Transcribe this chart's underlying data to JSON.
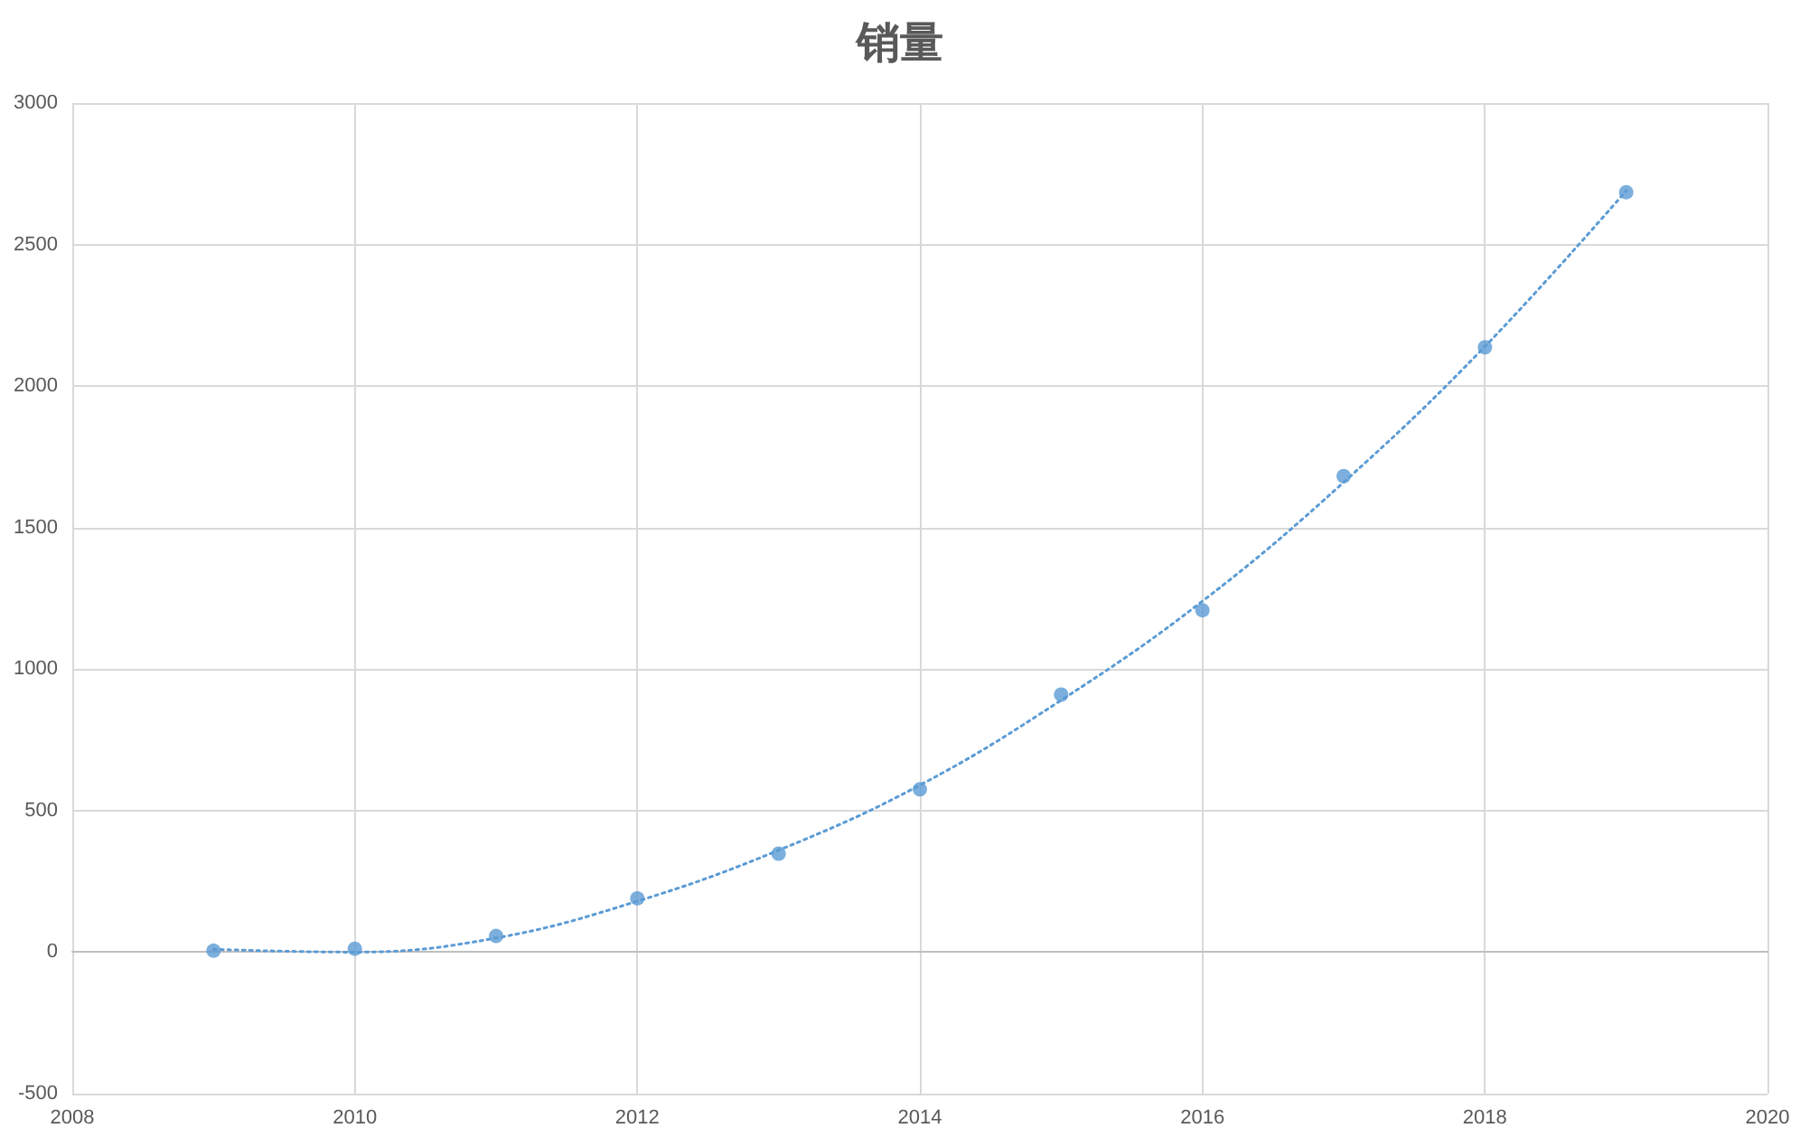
{
  "chart_data": {
    "type": "scatter",
    "title": "销量",
    "xlim": [
      2008,
      2020
    ],
    "xticks": [
      2008,
      2010,
      2012,
      2014,
      2016,
      2018,
      2020
    ],
    "ylim": [
      -500,
      3000
    ],
    "yticks": [
      -500,
      0,
      500,
      1000,
      1500,
      2000,
      2500,
      3000
    ],
    "grid": true,
    "x": [
      2009,
      2010,
      2011,
      2012,
      2013,
      2014,
      2015,
      2016,
      2017,
      2018,
      2019
    ],
    "series": [
      {
        "marker": "circle",
        "color": "#5b9bd5",
        "values": [
          5,
          12,
          57,
          190,
          348,
          575,
          910,
          1208,
          1682,
          2137,
          2685
        ]
      },
      {
        "type": "line",
        "marker": "none",
        "line_style": "dotted",
        "color": "#5b9bd5",
        "x": [
          2009,
          2010,
          2011,
          2012,
          2013,
          2014,
          2015,
          2016,
          2017,
          2018,
          2019
        ],
        "values": [
          10,
          0,
          50,
          180,
          360,
          590,
          890,
          1240,
          1660,
          2140,
          2690
        ]
      }
    ]
  }
}
